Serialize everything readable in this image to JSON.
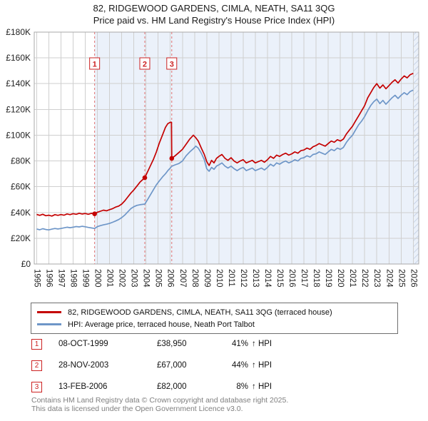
{
  "chart_data": {
    "type": "line",
    "title": "82, RIDGEWOOD GARDENS, CIMLA, NEATH, SA11 3QG",
    "subtitle": "Price paid vs. HM Land Registry's House Price Index (HPI)",
    "ylim": [
      0,
      180000
    ],
    "ytick_step": 20000,
    "ytick_labels": [
      "£0",
      "£20K",
      "£40K",
      "£60K",
      "£80K",
      "£100K",
      "£120K",
      "£140K",
      "£160K",
      "£180K"
    ],
    "x_domain": [
      1994.8,
      2026.45
    ],
    "x_ticks": [
      1995,
      1996,
      1997,
      1998,
      1999,
      2000,
      2001,
      2002,
      2003,
      2004,
      2005,
      2006,
      2007,
      2008,
      2009,
      2010,
      2011,
      2012,
      2013,
      2014,
      2015,
      2016,
      2017,
      2018,
      2019,
      2020,
      2021,
      2022,
      2023,
      2024,
      2025,
      2026
    ],
    "grid": true,
    "legend_position": "bottom",
    "band_start": 1999.77,
    "hatch_start": 2026.0,
    "colors": {
      "grid": "#cfcfcf",
      "border": "#a8a8a8",
      "band": "#ebf1fa",
      "hatch_line": "#bcc9e0",
      "sale_line": "#e07070",
      "sale_box": "#cc2222",
      "axis_text": "#222222"
    },
    "series": [
      {
        "name": "82, RIDGEWOOD GARDENS, CIMLA, NEATH, SA11 3QG (terraced house)",
        "color": "#c40000",
        "points": [
          [
            1995,
            38500
          ],
          [
            1995.25,
            37800
          ],
          [
            1995.5,
            38600
          ],
          [
            1995.75,
            37500
          ],
          [
            1996,
            37900
          ],
          [
            1996.25,
            37200
          ],
          [
            1996.5,
            38300
          ],
          [
            1996.75,
            37800
          ],
          [
            1997,
            38400
          ],
          [
            1997.25,
            37900
          ],
          [
            1997.5,
            38900
          ],
          [
            1997.75,
            38300
          ],
          [
            1998,
            39100
          ],
          [
            1998.25,
            38600
          ],
          [
            1998.5,
            39400
          ],
          [
            1998.75,
            38800
          ],
          [
            1999,
            39200
          ],
          [
            1999.25,
            38600
          ],
          [
            1999.5,
            39300
          ],
          [
            1999.77,
            38950
          ],
          [
            2000,
            40200
          ],
          [
            2000.25,
            41000
          ],
          [
            2000.5,
            41800
          ],
          [
            2000.75,
            41300
          ],
          [
            2001,
            42200
          ],
          [
            2001.25,
            43000
          ],
          [
            2001.5,
            44200
          ],
          [
            2001.75,
            45000
          ],
          [
            2002,
            46500
          ],
          [
            2002.25,
            49000
          ],
          [
            2002.5,
            52000
          ],
          [
            2002.75,
            55000
          ],
          [
            2003,
            57500
          ],
          [
            2003.25,
            60500
          ],
          [
            2003.5,
            63500
          ],
          [
            2003.9,
            67000
          ],
          [
            2004.1,
            71000
          ],
          [
            2004.35,
            76000
          ],
          [
            2004.6,
            81000
          ],
          [
            2004.85,
            87000
          ],
          [
            2005.1,
            94000
          ],
          [
            2005.35,
            100000
          ],
          [
            2005.6,
            106000
          ],
          [
            2005.8,
            109000
          ],
          [
            2006,
            110000
          ],
          [
            2006.1,
            110000
          ],
          [
            2006.12,
            82000
          ],
          [
            2006.4,
            84000
          ],
          [
            2006.7,
            86500
          ],
          [
            2007,
            89000
          ],
          [
            2007.3,
            93000
          ],
          [
            2007.6,
            97000
          ],
          [
            2007.9,
            100000
          ],
          [
            2008.1,
            98000
          ],
          [
            2008.3,
            95500
          ],
          [
            2008.55,
            90000
          ],
          [
            2008.8,
            85000
          ],
          [
            2009,
            79500
          ],
          [
            2009.2,
            76500
          ],
          [
            2009.4,
            80500
          ],
          [
            2009.6,
            78500
          ],
          [
            2009.8,
            82000
          ],
          [
            2010,
            83500
          ],
          [
            2010.25,
            85000
          ],
          [
            2010.5,
            82000
          ],
          [
            2010.75,
            80500
          ],
          [
            2011,
            82500
          ],
          [
            2011.25,
            80000
          ],
          [
            2011.5,
            78500
          ],
          [
            2011.75,
            80000
          ],
          [
            2012,
            81000
          ],
          [
            2012.25,
            78500
          ],
          [
            2012.5,
            79500
          ],
          [
            2012.75,
            80500
          ],
          [
            2013,
            78500
          ],
          [
            2013.25,
            79500
          ],
          [
            2013.5,
            80500
          ],
          [
            2013.75,
            79000
          ],
          [
            2014,
            81000
          ],
          [
            2014.25,
            83500
          ],
          [
            2014.5,
            82000
          ],
          [
            2014.75,
            84500
          ],
          [
            2015,
            83500
          ],
          [
            2015.25,
            85000
          ],
          [
            2015.5,
            86000
          ],
          [
            2015.75,
            84500
          ],
          [
            2016,
            85500
          ],
          [
            2016.25,
            87000
          ],
          [
            2016.5,
            86000
          ],
          [
            2016.75,
            88000
          ],
          [
            2017,
            88500
          ],
          [
            2017.25,
            90000
          ],
          [
            2017.5,
            89000
          ],
          [
            2017.75,
            91000
          ],
          [
            2018,
            92000
          ],
          [
            2018.25,
            93500
          ],
          [
            2018.5,
            92500
          ],
          [
            2018.75,
            91500
          ],
          [
            2019,
            93500
          ],
          [
            2019.25,
            95500
          ],
          [
            2019.5,
            94500
          ],
          [
            2019.75,
            96500
          ],
          [
            2020,
            95500
          ],
          [
            2020.25,
            97000
          ],
          [
            2020.5,
            101000
          ],
          [
            2020.75,
            104000
          ],
          [
            2021,
            107000
          ],
          [
            2021.25,
            111000
          ],
          [
            2021.5,
            115000
          ],
          [
            2021.75,
            119000
          ],
          [
            2022,
            123000
          ],
          [
            2022.25,
            129000
          ],
          [
            2022.5,
            133000
          ],
          [
            2022.75,
            137000
          ],
          [
            2023,
            140000
          ],
          [
            2023.25,
            136500
          ],
          [
            2023.5,
            139000
          ],
          [
            2023.75,
            136000
          ],
          [
            2024,
            138500
          ],
          [
            2024.25,
            141000
          ],
          [
            2024.5,
            143000
          ],
          [
            2024.75,
            140500
          ],
          [
            2025,
            143500
          ],
          [
            2025.25,
            146000
          ],
          [
            2025.5,
            144500
          ],
          [
            2025.75,
            147000
          ],
          [
            2026,
            148000
          ]
        ]
      },
      {
        "name": "HPI: Average price, terraced house, Neath Port Talbot",
        "color": "#6e96c8",
        "points": [
          [
            1995,
            27200
          ],
          [
            1995.25,
            26600
          ],
          [
            1995.5,
            27400
          ],
          [
            1995.75,
            26800
          ],
          [
            1996,
            26500
          ],
          [
            1996.25,
            27100
          ],
          [
            1996.5,
            27600
          ],
          [
            1996.75,
            27200
          ],
          [
            1997,
            27600
          ],
          [
            1997.25,
            28100
          ],
          [
            1997.5,
            28600
          ],
          [
            1997.75,
            28200
          ],
          [
            1998,
            28600
          ],
          [
            1998.25,
            29100
          ],
          [
            1998.5,
            28800
          ],
          [
            1998.75,
            29300
          ],
          [
            1999,
            28900
          ],
          [
            1999.25,
            28400
          ],
          [
            1999.5,
            28000
          ],
          [
            1999.77,
            27600
          ],
          [
            2000,
            29000
          ],
          [
            2000.25,
            29800
          ],
          [
            2000.5,
            30400
          ],
          [
            2000.75,
            30900
          ],
          [
            2001,
            31500
          ],
          [
            2001.25,
            32400
          ],
          [
            2001.5,
            33400
          ],
          [
            2001.75,
            34500
          ],
          [
            2002,
            36000
          ],
          [
            2002.25,
            38000
          ],
          [
            2002.5,
            40500
          ],
          [
            2002.75,
            43000
          ],
          [
            2003,
            44500
          ],
          [
            2003.25,
            45500
          ],
          [
            2003.5,
            46000
          ],
          [
            2003.9,
            46500
          ],
          [
            2004.1,
            49500
          ],
          [
            2004.35,
            53500
          ],
          [
            2004.6,
            57500
          ],
          [
            2004.85,
            61500
          ],
          [
            2005.1,
            64500
          ],
          [
            2005.35,
            67500
          ],
          [
            2005.6,
            70000
          ],
          [
            2005.8,
            72500
          ],
          [
            2006,
            74500
          ],
          [
            2006.12,
            75900
          ],
          [
            2006.4,
            77000
          ],
          [
            2006.7,
            78000
          ],
          [
            2007,
            80000
          ],
          [
            2007.3,
            84000
          ],
          [
            2007.6,
            87000
          ],
          [
            2007.9,
            89500
          ],
          [
            2008.1,
            91500
          ],
          [
            2008.3,
            90000
          ],
          [
            2008.55,
            86000
          ],
          [
            2008.8,
            81000
          ],
          [
            2009,
            74000
          ],
          [
            2009.2,
            72000
          ],
          [
            2009.4,
            75000
          ],
          [
            2009.6,
            73500
          ],
          [
            2009.8,
            76000
          ],
          [
            2010,
            77000
          ],
          [
            2010.25,
            78500
          ],
          [
            2010.5,
            76000
          ],
          [
            2010.75,
            74500
          ],
          [
            2011,
            76000
          ],
          [
            2011.25,
            74000
          ],
          [
            2011.5,
            72500
          ],
          [
            2011.75,
            74000
          ],
          [
            2012,
            75000
          ],
          [
            2012.25,
            72500
          ],
          [
            2012.5,
            73500
          ],
          [
            2012.75,
            74500
          ],
          [
            2013,
            72500
          ],
          [
            2013.25,
            73500
          ],
          [
            2013.5,
            74500
          ],
          [
            2013.75,
            73000
          ],
          [
            2014,
            75000
          ],
          [
            2014.25,
            77500
          ],
          [
            2014.5,
            76000
          ],
          [
            2014.75,
            78500
          ],
          [
            2015,
            77500
          ],
          [
            2015.25,
            79000
          ],
          [
            2015.5,
            80000
          ],
          [
            2015.75,
            78500
          ],
          [
            2016,
            79500
          ],
          [
            2016.25,
            81000
          ],
          [
            2016.5,
            80000
          ],
          [
            2016.75,
            82000
          ],
          [
            2017,
            82500
          ],
          [
            2017.25,
            84000
          ],
          [
            2017.5,
            83000
          ],
          [
            2017.75,
            85000
          ],
          [
            2018,
            85500
          ],
          [
            2018.25,
            87000
          ],
          [
            2018.5,
            86000
          ],
          [
            2018.75,
            85000
          ],
          [
            2019,
            87000
          ],
          [
            2019.25,
            89000
          ],
          [
            2019.5,
            88000
          ],
          [
            2019.75,
            90000
          ],
          [
            2020,
            89000
          ],
          [
            2020.25,
            90500
          ],
          [
            2020.5,
            94500
          ],
          [
            2020.75,
            97500
          ],
          [
            2021,
            100000
          ],
          [
            2021.25,
            104000
          ],
          [
            2021.5,
            108000
          ],
          [
            2021.75,
            111000
          ],
          [
            2022,
            114500
          ],
          [
            2022.25,
            119000
          ],
          [
            2022.5,
            123000
          ],
          [
            2022.75,
            126000
          ],
          [
            2023,
            128000
          ],
          [
            2023.25,
            124500
          ],
          [
            2023.5,
            127000
          ],
          [
            2023.75,
            124000
          ],
          [
            2024,
            126500
          ],
          [
            2024.25,
            129000
          ],
          [
            2024.5,
            131000
          ],
          [
            2024.75,
            128500
          ],
          [
            2025,
            131000
          ],
          [
            2025.25,
            133000
          ],
          [
            2025.5,
            131500
          ],
          [
            2025.75,
            134000
          ],
          [
            2026,
            135000
          ]
        ]
      }
    ],
    "sales": [
      {
        "n": "1",
        "x": 1999.77,
        "price": 38950
      },
      {
        "n": "2",
        "x": 2003.9,
        "price": 67000
      },
      {
        "n": "3",
        "x": 2006.12,
        "price": 82000
      }
    ]
  },
  "legend": [
    {
      "label": "82, RIDGEWOOD GARDENS, CIMLA, NEATH, SA11 3QG (terraced house)"
    },
    {
      "label": "HPI: Average price, terraced house, Neath Port Talbot"
    }
  ],
  "transactions": [
    {
      "n": "1",
      "date": "08-OCT-1999",
      "price": "£38,950",
      "pct": "41%",
      "rel": "↑ HPI"
    },
    {
      "n": "2",
      "date": "28-NOV-2003",
      "price": "£67,000",
      "pct": "44%",
      "rel": "↑ HPI"
    },
    {
      "n": "3",
      "date": "13-FEB-2006",
      "price": "£82,000",
      "pct": "8%",
      "rel": "↑ HPI"
    }
  ],
  "footer": {
    "line1": "Contains HM Land Registry data © Crown copyright and database right 2025.",
    "line2": "This data is licensed under the Open Government Licence v3.0."
  }
}
